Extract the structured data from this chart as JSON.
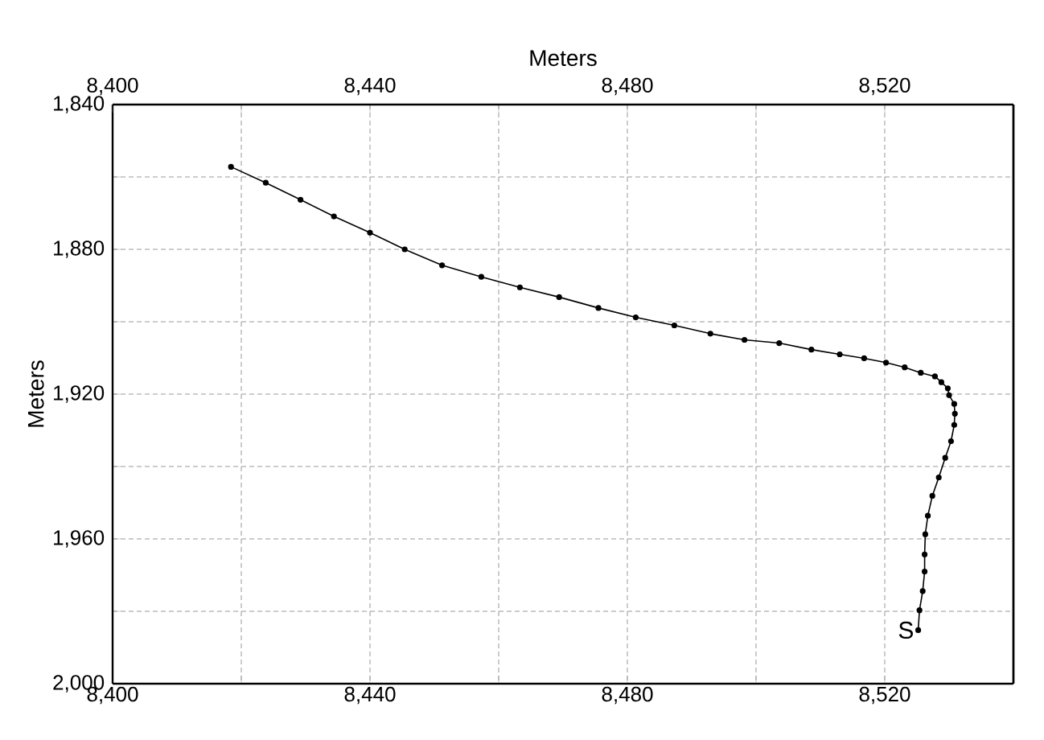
{
  "chart_data": {
    "type": "line",
    "x2label": "Meters",
    "ylabel": "Meters",
    "series": [
      {
        "color": "#000000",
        "x": [
          8418.4,
          8423.8,
          8429.2,
          8434.4,
          8440.0,
          8445.4,
          8451.2,
          8457.3,
          8463.3,
          8469.4,
          8475.5,
          8481.3,
          8487.3,
          8492.9,
          8498.2,
          8503.6,
          8508.6,
          8513.0,
          8516.8,
          8520.2,
          8523.1,
          8525.6,
          8527.8,
          8528.8,
          8529.8,
          8530.0,
          8530.8,
          8530.9,
          8530.8,
          8530.3,
          8529.4,
          8528.4,
          8527.4,
          8526.7,
          8526.3,
          8526.2,
          8526.2,
          8525.9,
          8525.4,
          8525.2
        ],
        "values": [
          1857.2,
          1861.6,
          1866.3,
          1870.9,
          1875.4,
          1880.0,
          1884.4,
          1887.6,
          1890.5,
          1893.2,
          1896.2,
          1898.8,
          1901.0,
          1903.3,
          1905.0,
          1905.9,
          1907.7,
          1909.0,
          1910.1,
          1911.3,
          1912.6,
          1914.1,
          1915.1,
          1916.7,
          1918.4,
          1920.3,
          1922.7,
          1925.4,
          1928.5,
          1933.0,
          1937.6,
          1943.0,
          1948.1,
          1953.6,
          1958.7,
          1964.3,
          1969.0,
          1974.4,
          1979.7,
          1985.2
        ]
      }
    ],
    "xlim": [
      8400,
      8540
    ],
    "xticks": [
      {
        "value": 8400,
        "label": "8,400"
      },
      {
        "value": 8420,
        "label": null
      },
      {
        "value": 8440,
        "label": "8,440"
      },
      {
        "value": 8460,
        "label": null
      },
      {
        "value": 8480,
        "label": "8,480"
      },
      {
        "value": 8500,
        "label": null
      },
      {
        "value": 8520,
        "label": "8,520"
      },
      {
        "value": 8540,
        "label": null
      }
    ],
    "x2lim": [
      8400,
      8540
    ],
    "x2ticks": [
      {
        "value": 8400,
        "label": "8,400"
      },
      {
        "value": 8420,
        "label": null
      },
      {
        "value": 8440,
        "label": "8,440"
      },
      {
        "value": 8460,
        "label": null
      },
      {
        "value": 8480,
        "label": "8,480"
      },
      {
        "value": 8500,
        "label": null
      },
      {
        "value": 8520,
        "label": "8,520"
      },
      {
        "value": 8540,
        "label": null
      }
    ],
    "ylim": [
      2000,
      1840
    ],
    "yticks": [
      {
        "value": 1840,
        "label": "1,840"
      },
      {
        "value": 1860,
        "label": null
      },
      {
        "value": 1880,
        "label": "1,880"
      },
      {
        "value": 1900,
        "label": null
      },
      {
        "value": 1920,
        "label": "1,920"
      },
      {
        "value": 1940,
        "label": null
      },
      {
        "value": 1960,
        "label": "1,960"
      },
      {
        "value": 1980,
        "label": null
      },
      {
        "value": 2000,
        "label": "2,000"
      }
    ],
    "annotations": [
      {
        "text": "S",
        "x": 8525.2,
        "y": 1985.2
      }
    ],
    "grid": true,
    "marker": "circle",
    "line_style": "solid"
  }
}
